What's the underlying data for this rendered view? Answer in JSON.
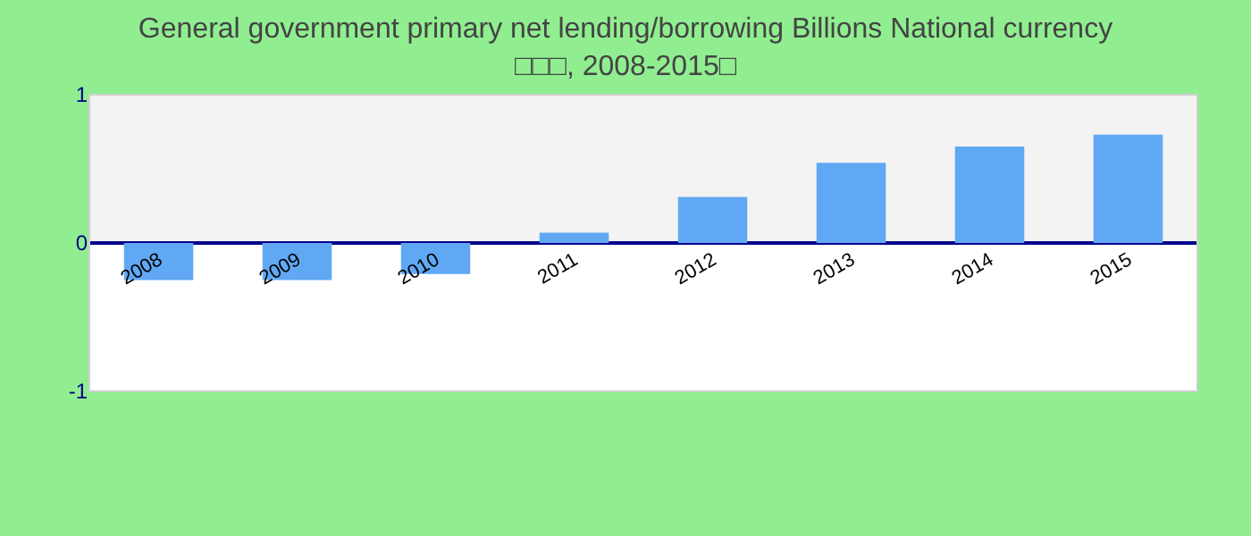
{
  "chart_data": {
    "type": "bar",
    "title": "General government primary net lending/borrowing Billions National currency\n□□□, 2008-2015□",
    "categories": [
      "2008",
      "2009",
      "2010",
      "2011",
      "2012",
      "2013",
      "2014",
      "2015"
    ],
    "values": [
      -0.25,
      -0.25,
      -0.21,
      0.07,
      0.31,
      0.54,
      0.65,
      0.73
    ],
    "color": "#60a8f4",
    "ylim": [
      -1,
      1
    ],
    "yticks": [
      -1,
      0,
      1
    ],
    "bands": [
      {
        "axis": "y",
        "from": 0,
        "to": 1,
        "color": "#f3f3f3"
      }
    ],
    "grid": false
  }
}
